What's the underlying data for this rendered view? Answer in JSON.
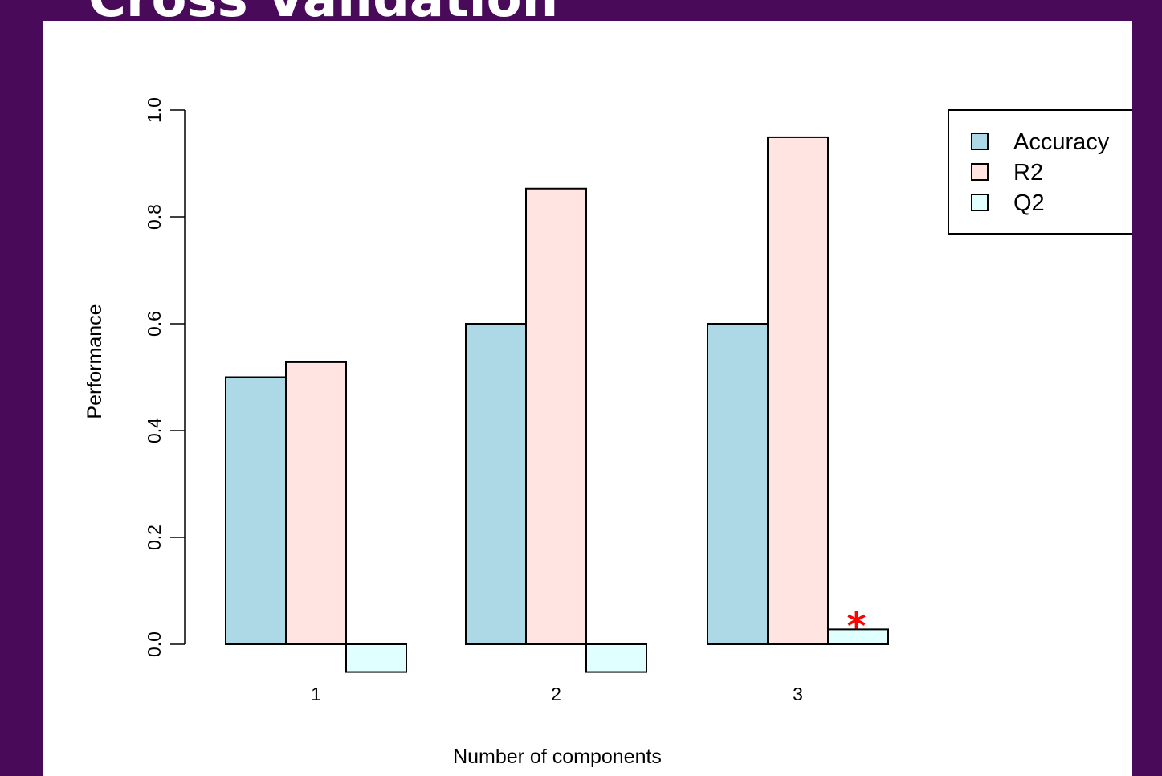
{
  "slide": {
    "title": "Cross Validation"
  },
  "chart_data": {
    "type": "bar",
    "categories": [
      "1",
      "2",
      "3"
    ],
    "series": [
      {
        "name": "Accuracy",
        "values": [
          0.5,
          0.6,
          0.6
        ],
        "color": "#add8e6"
      },
      {
        "name": "R2",
        "values": [
          0.528,
          0.853,
          0.949
        ],
        "color": "#ffe4e1"
      },
      {
        "name": "Q2",
        "values": [
          -0.052,
          -0.052,
          0.028
        ],
        "color": "#e0ffff"
      }
    ],
    "xlabel": "Number of components",
    "ylabel": "Performance",
    "ylim": [
      0,
      1.0
    ],
    "yticks": [
      "0.0",
      "0.2",
      "0.4",
      "0.6",
      "0.8",
      "1.0"
    ],
    "legend_position": "top-right",
    "grid": false,
    "best_marker": {
      "symbol": "*",
      "category": "3",
      "color": "#ff0000"
    }
  }
}
